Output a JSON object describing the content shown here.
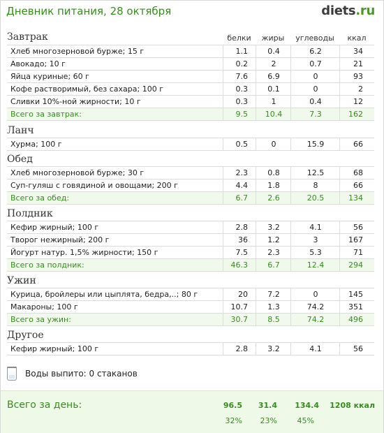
{
  "header": {
    "title": "Дневник питания, 28 октября",
    "logo_main": "diets",
    "logo_ext": ".ru"
  },
  "columns": {
    "protein": "белки",
    "fat": "жиры",
    "carbs": "углеводы",
    "kcal": "ккал"
  },
  "meals": [
    {
      "title": "Завтрак",
      "items": [
        {
          "name": "Хлеб многозерновой бурже; 15 г",
          "p": "1.1",
          "f": "0.4",
          "c": "6.2",
          "k": "34"
        },
        {
          "name": "Авокадо; 10 г",
          "p": "0.2",
          "f": "2",
          "c": "0.7",
          "k": "21"
        },
        {
          "name": "Яйца куриные; 60 г",
          "p": "7.6",
          "f": "6.9",
          "c": "0",
          "k": "93"
        },
        {
          "name": "Кофе растворимый, без сахара; 100 г",
          "p": "0.3",
          "f": "0.1",
          "c": "0",
          "k": "2"
        },
        {
          "name": "Сливки 10%-ной жирности; 10 г",
          "p": "0.3",
          "f": "1",
          "c": "0.4",
          "k": "12"
        }
      ],
      "total": {
        "name": "Всего за завтрак:",
        "p": "9.5",
        "f": "10.4",
        "c": "7.3",
        "k": "162"
      }
    },
    {
      "title": "Ланч",
      "items": [
        {
          "name": "Хурма; 100 г",
          "p": "0.5",
          "f": "0",
          "c": "15.9",
          "k": "66"
        }
      ]
    },
    {
      "title": "Обед",
      "items": [
        {
          "name": "Хлеб многозерновой бурже; 30 г",
          "p": "2.3",
          "f": "0.8",
          "c": "12.5",
          "k": "68"
        },
        {
          "name": "Суп-гуляш с говядиной и овощами; 200 г",
          "p": "4.4",
          "f": "1.8",
          "c": "8",
          "k": "66"
        }
      ],
      "total": {
        "name": "Всего за обед:",
        "p": "6.7",
        "f": "2.6",
        "c": "20.5",
        "k": "134"
      }
    },
    {
      "title": "Полдник",
      "items": [
        {
          "name": "Кефир жирный; 100 г",
          "p": "2.8",
          "f": "3.2",
          "c": "4.1",
          "k": "56"
        },
        {
          "name": "Творог нежирный; 200 г",
          "p": "36",
          "f": "1.2",
          "c": "3",
          "k": "167"
        },
        {
          "name": "Йогурт натур. 1,5% жирности; 150 г",
          "p": "7.5",
          "f": "2.3",
          "c": "5.3",
          "k": "71"
        }
      ],
      "total": {
        "name": "Всего за полдник:",
        "p": "46.3",
        "f": "6.7",
        "c": "12.4",
        "k": "294"
      }
    },
    {
      "title": "Ужин",
      "items": [
        {
          "name": "Курица, бройлеры или цыплята, бедра,..; 80 г",
          "p": "20",
          "f": "7.2",
          "c": "0",
          "k": "145"
        },
        {
          "name": "Макароны; 100 г",
          "p": "10.7",
          "f": "1.3",
          "c": "74.2",
          "k": "351"
        }
      ],
      "total": {
        "name": "Всего за ужин:",
        "p": "30.7",
        "f": "8.5",
        "c": "74.2",
        "k": "496"
      }
    },
    {
      "title": "Другое",
      "items": [
        {
          "name": "Кефир жирный; 100 г",
          "p": "2.8",
          "f": "3.2",
          "c": "4.1",
          "k": "56"
        }
      ]
    }
  ],
  "water": {
    "text": "Воды выпито: 0 стаканов",
    "icon": "water-glass-icon"
  },
  "day_total": {
    "label": "Всего за день:",
    "protein": "96.5",
    "fat": "31.4",
    "carbs": "134.4",
    "kcal": "1208 ккал",
    "protein_pct": "32%",
    "fat_pct": "23%",
    "carbs_pct": "45%"
  },
  "colors": {
    "accent": "#3a8a24",
    "total_bg": "#f1f9ec",
    "day_bg": "#eef9e8",
    "border": "#dcdcdc"
  }
}
